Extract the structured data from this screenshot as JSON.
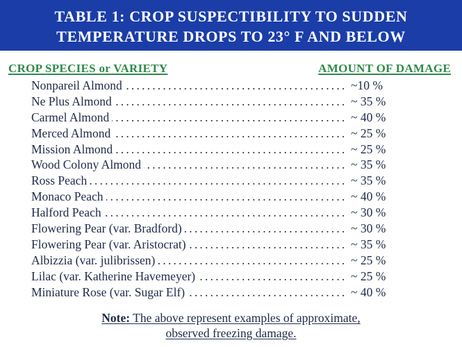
{
  "title": {
    "line1": "TABLE 1: CROP SUSPECTIBILITY TO SUDDEN",
    "line2": "TEMPERATURE DROPS TO 23° F AND BELOW"
  },
  "columns": {
    "crop": "CROP SPECIES or VARIETY",
    "damage": "AMOUNT OF DAMAGE"
  },
  "rows": [
    {
      "crop": "Nonpareil Almond",
      "damage": "~10 %"
    },
    {
      "crop": "Ne Plus Almond",
      "damage": "~ 35 %"
    },
    {
      "crop": "Carmel Almond",
      "damage": "~ 40 %"
    },
    {
      "crop": "Merced Almond",
      "damage": "~ 25 %"
    },
    {
      "crop": "Mission Almond",
      "damage": "~ 25 %"
    },
    {
      "crop": "Wood Colony Almond",
      "damage": "~ 35 %"
    },
    {
      "crop": "Ross Peach",
      "damage": "~ 35 %"
    },
    {
      "crop": "Monaco Peach",
      "damage": "~ 40 %"
    },
    {
      "crop": "Halford Peach",
      "damage": "~ 30 %"
    },
    {
      "crop": "Flowering Pear (var. Bradford)",
      "damage": "~ 30 %"
    },
    {
      "crop": "Flowering Pear (var. Aristocrat)",
      "damage": "~ 35 %"
    },
    {
      "crop": "Albizzia (var. julibrissen)",
      "damage": "~ 25 %"
    },
    {
      "crop": "Lilac (var. Katherine Havemeyer)",
      "damage": "~ 25 %"
    },
    {
      "crop": "Miniature Rose (var. Sugar Elf)",
      "damage": "~ 40 %"
    }
  ],
  "note": {
    "label": "Note:",
    "line1": "The above represent examples of approximate,",
    "line2": "observed freezing damage."
  },
  "colors": {
    "banner": "#1a3da8",
    "header_green": "#2e8a4a",
    "text": "#1f2a4a"
  }
}
